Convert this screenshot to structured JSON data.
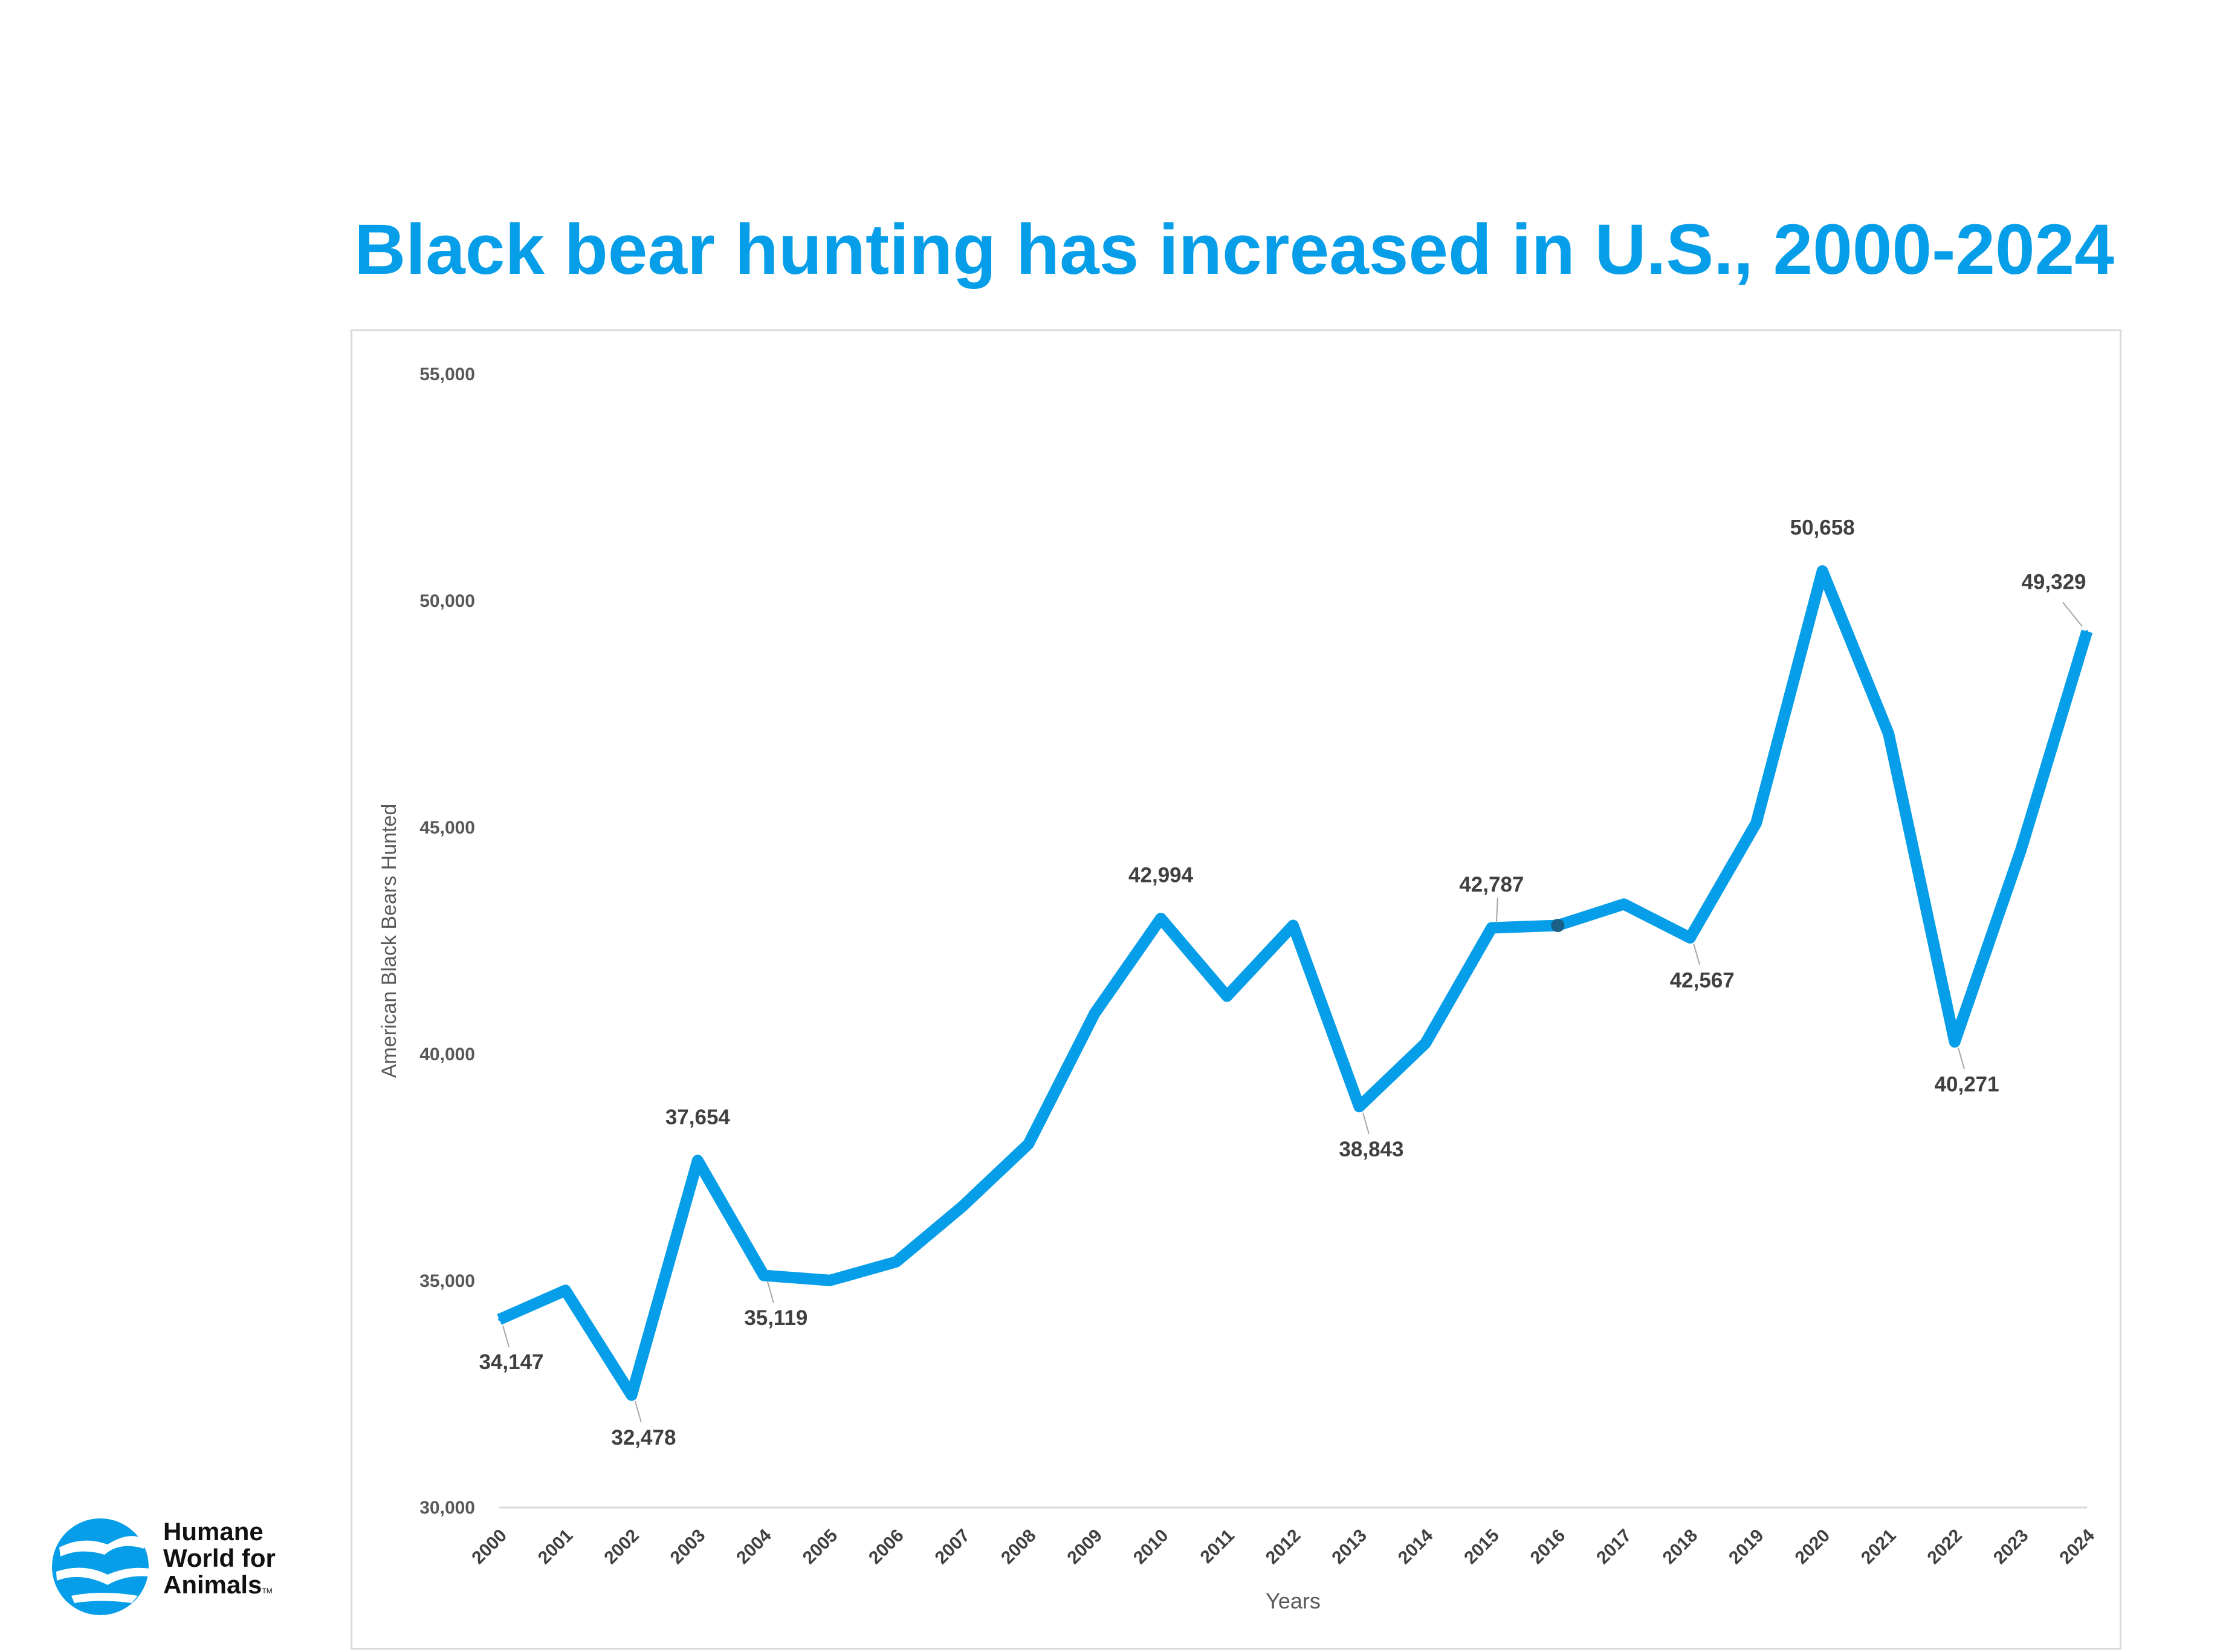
{
  "chart_data": {
    "type": "line",
    "title": "Black bear hunting has increased in U.S., 2000-2024",
    "xlabel": "Years",
    "ylabel": "American Black Bears Hunted",
    "ylim": [
      30000,
      55000
    ],
    "yticks": [
      "30,000",
      "35,000",
      "40,000",
      "45,000",
      "50,000",
      "55,000"
    ],
    "ytick_values": [
      30000,
      35000,
      40000,
      45000,
      50000,
      55000
    ],
    "grid": false,
    "x": [
      "2000",
      "2001",
      "2002",
      "2003",
      "2004",
      "2005",
      "2006",
      "2007",
      "2008",
      "2009",
      "2010",
      "2011",
      "2012",
      "2013",
      "2014",
      "2015",
      "2016",
      "2017",
      "2018",
      "2019",
      "2020",
      "2021",
      "2022",
      "2023",
      "2024"
    ],
    "series": [
      {
        "name": "American Black Bears Hunted",
        "color": "#069ee8",
        "values": [
          34147,
          34790,
          32478,
          37654,
          35119,
          35010,
          35420,
          36640,
          38020,
          40900,
          42994,
          41280,
          42840,
          38843,
          40240,
          42787,
          42840,
          43310,
          42567,
          45100,
          50658,
          47070,
          40271,
          44500,
          49329
        ]
      }
    ],
    "data_labels": [
      {
        "year": "2000",
        "text": "34,147",
        "placement": "below"
      },
      {
        "year": "2002",
        "text": "32,478",
        "placement": "below"
      },
      {
        "year": "2003",
        "text": "37,654",
        "placement": "above"
      },
      {
        "year": "2004",
        "text": "35,119",
        "placement": "below"
      },
      {
        "year": "2010",
        "text": "42,994",
        "placement": "above"
      },
      {
        "year": "2013",
        "text": "38,843",
        "placement": "below"
      },
      {
        "year": "2015",
        "text": "42,787",
        "placement": "above"
      },
      {
        "year": "2018",
        "text": "42,567",
        "placement": "below"
      },
      {
        "year": "2020",
        "text": "50,658",
        "placement": "above"
      },
      {
        "year": "2022",
        "text": "40,271",
        "placement": "below"
      },
      {
        "year": "2024",
        "text": "49,329",
        "placement": "above-left"
      }
    ],
    "highlighted_point": "2016",
    "highlight_color": "#1a5f86"
  },
  "logo": {
    "line1": "Humane",
    "line2": "World for",
    "line3": "Animals",
    "tm": "TM",
    "color": "#069ee8"
  }
}
